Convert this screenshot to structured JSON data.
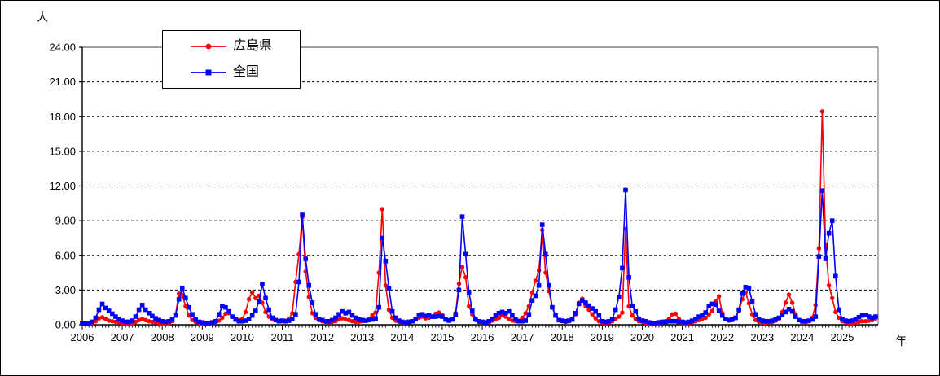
{
  "figure": {
    "y_axis_unit": "人",
    "x_axis_unit": "年",
    "background": "#ffffff",
    "plot_border_color": "#808080",
    "axis_color": "#000000",
    "grid_color": "#000000"
  },
  "legend": {
    "items": [
      {
        "label": "広島県",
        "color": "#ff0000",
        "marker": "circle"
      },
      {
        "label": "全国",
        "color": "#0000ff",
        "marker": "square"
      }
    ]
  },
  "chart_data": {
    "type": "line",
    "title": "",
    "xlabel": "年",
    "ylabel": "人",
    "ylim": [
      0,
      24
    ],
    "y_tick_step": 3,
    "y_tick_format": "0.00",
    "grid": "horizontal-dotted",
    "legend_position": "top-left-inside",
    "x_start": "2006-01",
    "x_frequency": "monthly",
    "x_tick_labels": [
      "2006",
      "2007",
      "2008",
      "2009",
      "2010",
      "2011",
      "2012",
      "2013",
      "2014",
      "2015",
      "2016",
      "2017",
      "2018",
      "2019",
      "2020",
      "2021",
      "2022",
      "2023",
      "2024",
      "2025"
    ],
    "series": [
      {
        "name": "広島県",
        "color": "#ff0000",
        "marker": "circle",
        "values": [
          0.1,
          0.08,
          0.1,
          0.15,
          0.3,
          0.55,
          0.65,
          0.5,
          0.35,
          0.3,
          0.25,
          0.2,
          0.15,
          0.1,
          0.1,
          0.15,
          0.25,
          0.4,
          0.5,
          0.4,
          0.3,
          0.25,
          0.2,
          0.15,
          0.12,
          0.1,
          0.15,
          0.3,
          0.9,
          2.7,
          2.55,
          1.6,
          0.8,
          0.4,
          0.25,
          0.15,
          0.1,
          0.08,
          0.1,
          0.15,
          0.25,
          0.35,
          0.6,
          0.95,
          1.0,
          0.7,
          0.45,
          0.4,
          0.5,
          1.1,
          2.2,
          2.8,
          2.3,
          2.5,
          1.9,
          1.1,
          0.7,
          0.5,
          0.4,
          0.35,
          0.3,
          0.35,
          0.5,
          1.0,
          3.7,
          6.1,
          9.3,
          4.6,
          2.4,
          1.0,
          0.6,
          0.4,
          0.3,
          0.25,
          0.2,
          0.25,
          0.3,
          0.45,
          0.55,
          0.45,
          0.4,
          0.3,
          0.25,
          0.25,
          0.3,
          0.35,
          0.5,
          0.8,
          1.05,
          4.5,
          10.0,
          3.4,
          1.3,
          0.6,
          0.35,
          0.25,
          0.2,
          0.18,
          0.22,
          0.3,
          0.45,
          0.6,
          0.7,
          0.55,
          0.6,
          0.7,
          0.95,
          1.05,
          0.85,
          0.5,
          0.4,
          0.5,
          1.0,
          3.55,
          5.0,
          4.1,
          1.6,
          0.9,
          0.4,
          0.25,
          0.2,
          0.18,
          0.25,
          0.35,
          0.45,
          0.6,
          0.85,
          0.7,
          0.5,
          0.35,
          0.3,
          0.35,
          0.6,
          1.0,
          1.6,
          2.8,
          3.8,
          4.7,
          8.2,
          4.5,
          2.9,
          1.5,
          0.8,
          0.4,
          0.3,
          0.25,
          0.3,
          0.5,
          0.9,
          1.9,
          2.25,
          1.6,
          1.3,
          0.9,
          0.55,
          0.3,
          0.2,
          0.15,
          0.2,
          0.3,
          0.5,
          0.7,
          1.05,
          8.3,
          1.6,
          0.8,
          0.5,
          0.3,
          0.25,
          0.15,
          0.1,
          0.05,
          0.1,
          0.15,
          0.2,
          0.3,
          0.5,
          0.9,
          0.95,
          0.5,
          0.15,
          0.1,
          0.15,
          0.2,
          0.3,
          0.4,
          0.5,
          0.6,
          0.9,
          1.2,
          2.0,
          2.45,
          1.0,
          0.5,
          0.35,
          0.4,
          0.6,
          1.2,
          2.2,
          2.8,
          1.85,
          0.9,
          0.4,
          0.25,
          0.2,
          0.15,
          0.2,
          0.25,
          0.35,
          0.55,
          1.1,
          1.9,
          2.6,
          1.9,
          0.9,
          0.4,
          0.25,
          0.2,
          0.3,
          0.6,
          1.7,
          6.6,
          18.45,
          6.9,
          3.4,
          2.3,
          1.1,
          0.6,
          0.3,
          0.2,
          0.15,
          0.15,
          0.2,
          0.25,
          0.3,
          0.3,
          0.35,
          0.4,
          0.55
        ]
      },
      {
        "name": "全国",
        "color": "#0000ff",
        "marker": "square",
        "values": [
          0.15,
          0.12,
          0.15,
          0.25,
          0.6,
          1.3,
          1.8,
          1.45,
          1.2,
          0.95,
          0.7,
          0.5,
          0.35,
          0.25,
          0.25,
          0.35,
          0.7,
          1.3,
          1.7,
          1.3,
          1.0,
          0.75,
          0.55,
          0.4,
          0.3,
          0.25,
          0.3,
          0.45,
          0.8,
          2.2,
          3.15,
          2.3,
          1.5,
          0.9,
          0.45,
          0.25,
          0.2,
          0.15,
          0.15,
          0.2,
          0.3,
          0.9,
          1.6,
          1.5,
          1.15,
          0.7,
          0.45,
          0.3,
          0.3,
          0.35,
          0.5,
          0.8,
          1.2,
          2.0,
          3.5,
          2.3,
          1.3,
          0.6,
          0.4,
          0.3,
          0.35,
          0.3,
          0.35,
          0.5,
          0.9,
          3.7,
          9.5,
          5.7,
          3.4,
          1.9,
          0.9,
          0.5,
          0.4,
          0.3,
          0.3,
          0.4,
          0.6,
          0.9,
          1.15,
          1.0,
          1.1,
          0.8,
          0.6,
          0.45,
          0.4,
          0.35,
          0.4,
          0.45,
          0.55,
          1.5,
          7.5,
          5.5,
          3.15,
          1.15,
          0.6,
          0.35,
          0.25,
          0.2,
          0.25,
          0.3,
          0.5,
          0.8,
          0.9,
          0.75,
          0.85,
          0.7,
          0.7,
          0.75,
          0.7,
          0.45,
          0.35,
          0.45,
          0.9,
          3.0,
          9.35,
          6.1,
          2.8,
          1.2,
          0.5,
          0.3,
          0.25,
          0.2,
          0.3,
          0.5,
          0.8,
          1.0,
          1.1,
          1.0,
          1.15,
          0.8,
          0.45,
          0.3,
          0.3,
          0.35,
          0.9,
          2.1,
          2.5,
          3.4,
          8.65,
          6.1,
          3.4,
          1.5,
          0.8,
          0.4,
          0.35,
          0.3,
          0.35,
          0.45,
          1.0,
          1.8,
          2.1,
          1.9,
          1.65,
          1.4,
          1.15,
          0.8,
          0.3,
          0.25,
          0.3,
          0.5,
          1.3,
          2.4,
          4.9,
          11.65,
          4.1,
          1.6,
          1.15,
          0.5,
          0.35,
          0.3,
          0.2,
          0.15,
          0.15,
          0.2,
          0.25,
          0.25,
          0.3,
          0.3,
          0.3,
          0.25,
          0.25,
          0.2,
          0.25,
          0.35,
          0.5,
          0.7,
          0.85,
          1.05,
          1.6,
          1.8,
          1.75,
          1.2,
          0.8,
          0.5,
          0.4,
          0.45,
          0.6,
          1.3,
          2.7,
          3.25,
          3.15,
          2.0,
          0.9,
          0.45,
          0.35,
          0.3,
          0.3,
          0.35,
          0.45,
          0.6,
          0.85,
          1.1,
          1.35,
          1.15,
          0.7,
          0.4,
          0.3,
          0.3,
          0.35,
          0.45,
          0.7,
          5.9,
          11.6,
          5.7,
          7.9,
          9.0,
          4.2,
          1.3,
          0.5,
          0.35,
          0.3,
          0.35,
          0.5,
          0.65,
          0.8,
          0.85,
          0.7,
          0.6,
          0.7
        ]
      }
    ]
  }
}
